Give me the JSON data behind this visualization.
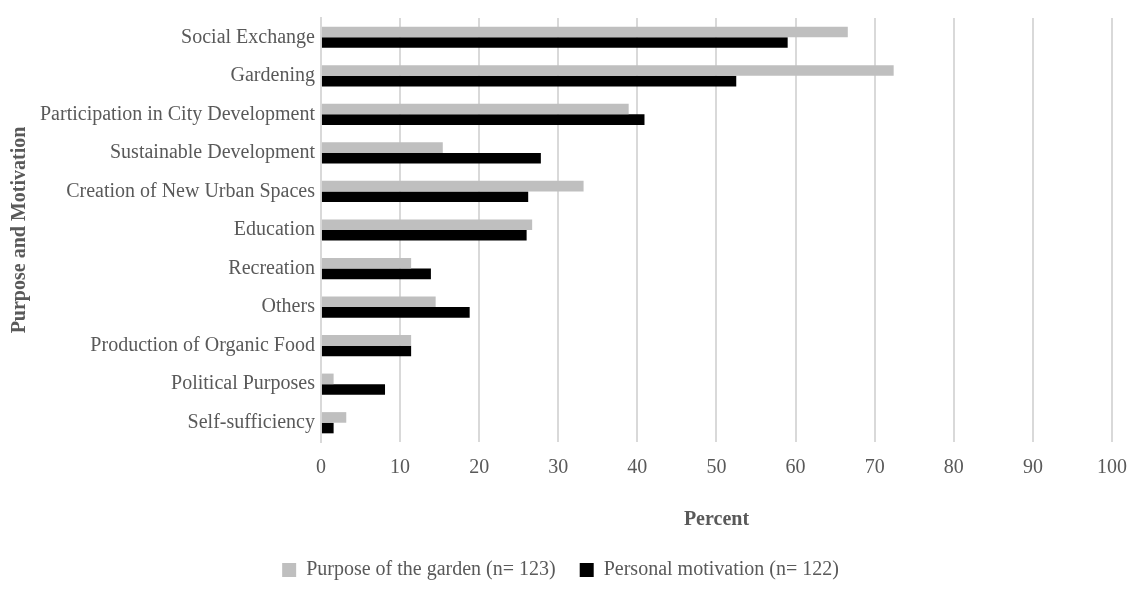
{
  "chart_data": {
    "type": "bar",
    "orientation": "horizontal",
    "xlabel": "Percent",
    "ylabel": "Purpose and Motivation",
    "categories": [
      "Social Exchange",
      "Gardening",
      "Participation in City Development",
      "Sustainable Development",
      "Creation of New Urban Spaces",
      "Education",
      "Recreation",
      "Others",
      "Production of Organic Food",
      "Political Purposes",
      "Self-sufficiency"
    ],
    "series": [
      {
        "name": "Purpose of the garden (n= 123)",
        "color": "#bfbfbf",
        "values": [
          66.6,
          72.4,
          38.9,
          15.4,
          33.2,
          26.7,
          11.4,
          14.5,
          11.4,
          1.6,
          3.2
        ]
      },
      {
        "name": "Personal motivation (n= 122)",
        "color": "#000000",
        "values": [
          59.0,
          52.5,
          40.9,
          27.8,
          26.2,
          26.0,
          13.9,
          18.8,
          11.4,
          8.1,
          1.6
        ]
      }
    ],
    "xlim": [
      0,
      100
    ],
    "xticks": [
      0,
      10,
      20,
      30,
      40,
      50,
      60,
      70,
      80,
      90,
      100
    ],
    "grid": "x",
    "legend": "bottom"
  }
}
